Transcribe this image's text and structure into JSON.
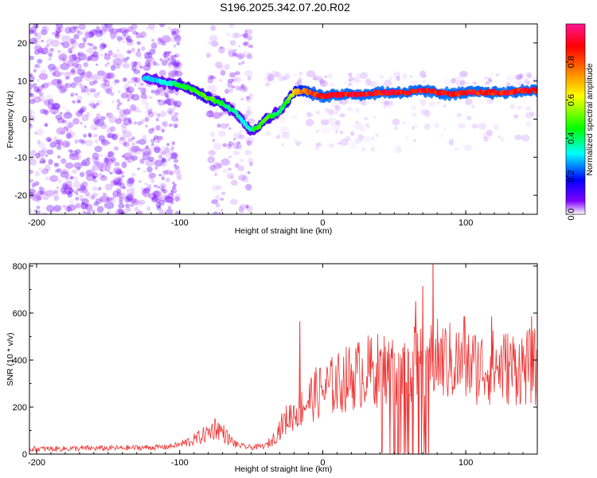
{
  "chart_data": [
    {
      "type": "heatmap",
      "title": "S196.2025.342.07.20.R02",
      "xlabel": "Height of straight line (km)",
      "ylabel": "Frequency (Hz)",
      "xlim": [
        -205,
        150
      ],
      "ylim": [
        -25,
        25
      ],
      "xticks": [
        -200,
        -100,
        0,
        100
      ],
      "yticks": [
        -20,
        -10,
        0,
        10,
        20
      ],
      "colorbar": {
        "label": "Normalized spectral amplitude",
        "range": [
          0,
          1
        ],
        "ticks": [
          "0.0",
          "0.2",
          "0.4",
          "0.6",
          "0.8"
        ],
        "tick_values": [
          0.0,
          0.2,
          0.4,
          0.6,
          0.8
        ],
        "colors": [
          "#ffffff",
          "#8000ff",
          "#0000ff",
          "#00ffff",
          "#00ff00",
          "#ffff00",
          "#ff8000",
          "#ff0000",
          "#ff1493"
        ]
      },
      "ridge": {
        "x": [
          -125,
          -110,
          -100,
          -90,
          -80,
          -70,
          -60,
          -55,
          -50,
          -45,
          -40,
          -35,
          -30,
          -25,
          -20,
          -15,
          -10,
          -5,
          0,
          10,
          20,
          30,
          40,
          50,
          60,
          70,
          80,
          90,
          100,
          110,
          120,
          130,
          140,
          150
        ],
        "freq": [
          11,
          9.5,
          9,
          7.5,
          5.5,
          4,
          1.5,
          -1,
          -3,
          -2,
          0,
          1,
          2,
          4.5,
          7,
          7.5,
          7,
          6.5,
          6,
          6.5,
          6.5,
          6.5,
          7,
          7,
          7,
          7.5,
          7,
          6.5,
          7,
          7,
          7,
          7,
          7.5,
          7.5
        ],
        "amplitude": [
          0.3,
          0.35,
          0.45,
          0.5,
          0.55,
          0.45,
          0.4,
          0.35,
          0.4,
          0.5,
          0.55,
          0.45,
          0.4,
          0.5,
          0.7,
          0.8,
          0.85,
          0.9,
          0.95,
          0.95,
          0.95,
          0.95,
          0.95,
          0.95,
          0.95,
          0.95,
          0.95,
          0.95,
          0.95,
          0.95,
          0.95,
          0.95,
          0.95,
          0.95
        ]
      }
    },
    {
      "type": "line",
      "xlabel": "Height of straight line (km)",
      "ylabel": "SNR (10 * v/v)",
      "xlim": [
        -205,
        150
      ],
      "ylim": [
        0,
        810
      ],
      "xticks": [
        -200,
        -100,
        0,
        100
      ],
      "yticks": [
        0,
        200,
        400,
        600,
        800
      ],
      "color": "#ee3333",
      "series": [
        {
          "name": "SNR",
          "x": [
            -205,
            -190,
            -170,
            -150,
            -130,
            -110,
            -100,
            -90,
            -80,
            -75,
            -70,
            -65,
            -60,
            -55,
            -50,
            -40,
            -35,
            -30,
            -25,
            -20,
            -15,
            -10,
            -5,
            0,
            10,
            20,
            30,
            40,
            50,
            60,
            70,
            80,
            90,
            100,
            110,
            120,
            130,
            140,
            150
          ],
          "envelope": [
            22,
            22,
            24,
            25,
            27,
            30,
            40,
            60,
            90,
            115,
            95,
            60,
            40,
            32,
            28,
            35,
            60,
            110,
            150,
            175,
            200,
            230,
            255,
            270,
            300,
            330,
            350,
            360,
            370,
            375,
            380,
            400,
            390,
            380,
            370,
            370,
            370,
            370,
            370
          ]
        }
      ],
      "peaks": [
        {
          "x": -16,
          "y": 565
        },
        {
          "x": 77,
          "y": 808
        },
        {
          "x": 70,
          "y": 715
        },
        {
          "x": 65,
          "y": 650
        },
        {
          "x": 99,
          "y": 585
        },
        {
          "x": 118,
          "y": 585
        },
        {
          "x": 146,
          "y": 585
        }
      ],
      "dropouts": [
        {
          "x": 47,
          "y": 0
        },
        {
          "x": 50,
          "y": 0
        },
        {
          "x": 53,
          "y": 0
        },
        {
          "x": 57,
          "y": 0
        },
        {
          "x": 60,
          "y": 0
        },
        {
          "x": 63,
          "y": 0
        },
        {
          "x": 67,
          "y": 0
        },
        {
          "x": 69,
          "y": 0
        },
        {
          "x": 72,
          "y": 0
        },
        {
          "x": 74,
          "y": 10
        }
      ]
    }
  ]
}
